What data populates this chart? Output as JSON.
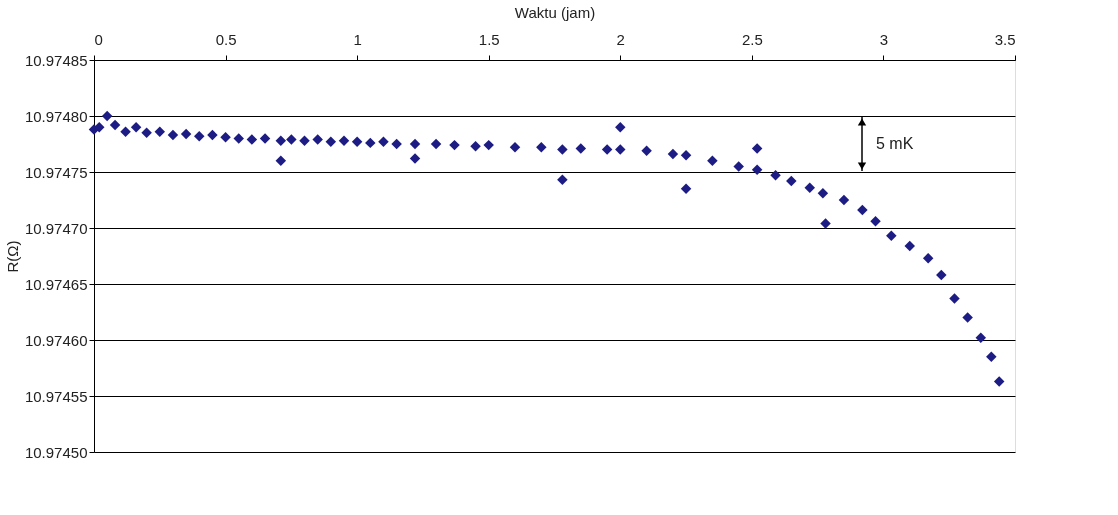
{
  "chart_data": {
    "type": "scatter",
    "xlabel": "Waktu (jam)",
    "ylabel": "R(Ω)",
    "xlim": [
      0,
      3.5
    ],
    "xticks": [
      0,
      0.5,
      1,
      1.5,
      2,
      2.5,
      3,
      3.5
    ],
    "ylim": [
      10.9745,
      10.97485
    ],
    "yticks": [
      {
        "value": 10.9745,
        "label": "10.97450"
      },
      10.97455,
      {
        "value": 10.9746,
        "label": "10.97460"
      },
      10.97465,
      {
        "value": 10.9747,
        "label": "10.97470"
      },
      10.97475,
      {
        "value": 10.9748,
        "label": "10.97480"
      },
      10.97485
    ],
    "annotations": [
      "5 mK"
    ],
    "grid": "y",
    "marker": "diamond",
    "legend": false,
    "series": [
      {
        "color": "#1c1c84",
        "x": [
          0,
          0.02,
          0.05,
          0.08,
          0.12,
          0.16,
          0.2,
          0.25,
          0.3,
          0.35,
          0.4,
          0.45,
          0.5,
          0.55,
          0.6,
          0.65,
          0.71,
          0.71,
          0.75,
          0.8,
          0.85,
          0.9,
          0.95,
          1.0,
          1.05,
          1.1,
          1.15,
          1.22,
          1.22,
          1.3,
          1.37,
          1.45,
          1.5,
          1.6,
          1.7,
          1.78,
          1.78,
          1.85,
          1.95,
          2.0,
          2.0,
          2.1,
          2.2,
          2.25,
          2.25,
          2.35,
          2.45,
          2.52,
          2.52,
          2.59,
          2.65,
          2.72,
          2.77,
          2.78,
          2.85,
          2.92,
          2.97,
          3.03,
          3.1,
          3.17,
          3.22,
          3.27,
          3.32,
          3.37,
          3.41,
          3.44
        ],
        "values": [
          10.974788,
          10.97479,
          10.9748,
          10.974792,
          10.974786,
          10.97479,
          10.974785,
          10.974786,
          10.974783,
          10.974784,
          10.974782,
          10.974783,
          10.974781,
          10.97478,
          10.974779,
          10.97478,
          10.974778,
          10.97476,
          10.974779,
          10.974778,
          10.974779,
          10.974777,
          10.974778,
          10.974777,
          10.974776,
          10.974777,
          10.974775,
          10.974775,
          10.974762,
          10.974775,
          10.974774,
          10.974773,
          10.974774,
          10.974772,
          10.974772,
          10.97477,
          10.974743,
          10.974771,
          10.97477,
          10.97477,
          10.97479,
          10.974769,
          10.974766,
          10.974765,
          10.974735,
          10.97476,
          10.974755,
          10.974752,
          10.974771,
          10.974747,
          10.974742,
          10.974736,
          10.974731,
          10.974704,
          10.974725,
          10.974716,
          10.974706,
          10.974693,
          10.974684,
          10.974673,
          10.974658,
          10.974637,
          10.97462,
          10.974602,
          10.974585,
          10.974563
        ]
      }
    ]
  }
}
